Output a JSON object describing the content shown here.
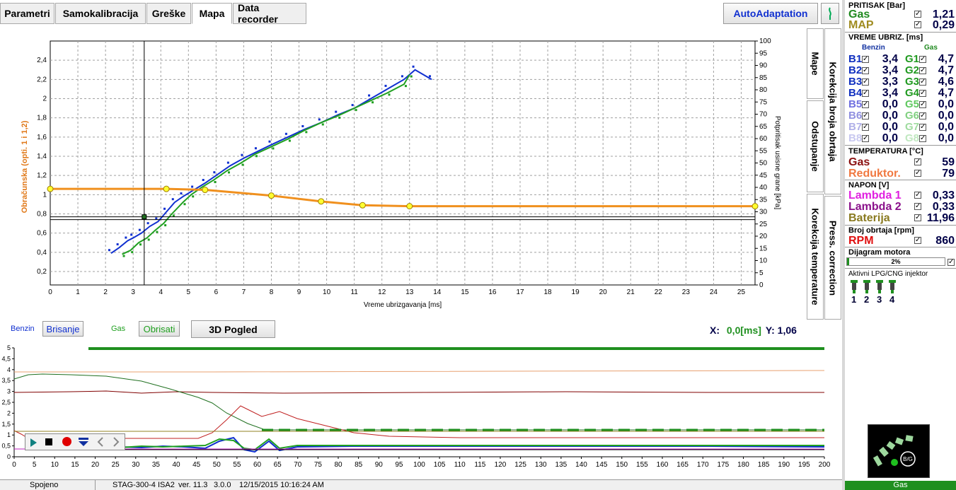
{
  "tabs": [
    "Parametri",
    "Samokalibracija",
    "Greške",
    "Mapa",
    "Data recorder"
  ],
  "auto_adaptation_label": "AutoAdaptation",
  "side_tabs": {
    "mape": "Mape",
    "korekcija_obrtaja": "Korekcija broja obrtaja",
    "odstupanje": "Odstupanje",
    "press_correction": "Press. correction",
    "korekcija_temperature": "Korekcija temperature"
  },
  "map_chart": {
    "ylabel_left": "Obračunska (opti. 1 i 1,2)",
    "ylabel_right": "Potpritisak usisne grane [kPa]",
    "xlabel": "Vreme ubrizgavanja [ms]",
    "y_ticks_left": [
      "0,2",
      "0,4",
      "0,6",
      "0,8",
      "1",
      "1,2",
      "1,4",
      "1,6",
      "1,8",
      "2",
      "2,2",
      "2,4"
    ],
    "y_ticks_right": [
      "0",
      "5",
      "10",
      "15",
      "20",
      "25",
      "30",
      "35",
      "40",
      "45",
      "50",
      "55",
      "60",
      "65",
      "70",
      "75",
      "80",
      "85",
      "90",
      "95",
      "100"
    ],
    "x_ticks": [
      "0",
      "1",
      "2",
      "3",
      "4",
      "5",
      "6",
      "7",
      "8",
      "9",
      "10",
      "11",
      "12",
      "13",
      "14",
      "15",
      "16",
      "17",
      "18",
      "19",
      "20",
      "21",
      "22",
      "23",
      "24",
      "25"
    ]
  },
  "chart_data": {
    "type": "scatter",
    "xlim": [
      0,
      25.5
    ],
    "ylim_left": [
      0.06,
      2.6
    ],
    "ylim_right": [
      0,
      100
    ],
    "series": [
      {
        "name": "Benzin",
        "color": "#1030d0",
        "points": [
          [
            2.2,
            0.39
          ],
          [
            2.5,
            0.45
          ],
          [
            2.8,
            0.52
          ],
          [
            3.0,
            0.55
          ],
          [
            3.3,
            0.6
          ],
          [
            3.6,
            0.67
          ],
          [
            3.9,
            0.72
          ],
          [
            4.2,
            0.82
          ],
          [
            4.5,
            0.92
          ],
          [
            4.8,
            0.98
          ],
          [
            5.2,
            1.05
          ],
          [
            5.6,
            1.12
          ],
          [
            6.0,
            1.2
          ],
          [
            6.5,
            1.3
          ],
          [
            7.0,
            1.38
          ],
          [
            7.5,
            1.45
          ],
          [
            8.0,
            1.52
          ],
          [
            8.6,
            1.6
          ],
          [
            9.2,
            1.68
          ],
          [
            9.8,
            1.75
          ],
          [
            10.4,
            1.83
          ],
          [
            11.0,
            1.9
          ],
          [
            11.6,
            2.0
          ],
          [
            12.2,
            2.1
          ],
          [
            12.8,
            2.2
          ],
          [
            13.2,
            2.3
          ],
          [
            13.8,
            2.2
          ]
        ]
      },
      {
        "name": "Gas",
        "color": "#20a020",
        "points": [
          [
            2.6,
            0.38
          ],
          [
            2.9,
            0.42
          ],
          [
            3.2,
            0.5
          ],
          [
            3.5,
            0.55
          ],
          [
            3.8,
            0.63
          ],
          [
            4.1,
            0.7
          ],
          [
            4.4,
            0.8
          ],
          [
            4.8,
            0.92
          ],
          [
            5.1,
            1.0
          ],
          [
            5.5,
            1.08
          ],
          [
            5.9,
            1.15
          ],
          [
            6.4,
            1.25
          ],
          [
            6.9,
            1.33
          ],
          [
            7.4,
            1.42
          ],
          [
            8.0,
            1.5
          ],
          [
            8.6,
            1.58
          ],
          [
            9.2,
            1.67
          ],
          [
            9.8,
            1.75
          ],
          [
            10.4,
            1.82
          ],
          [
            11.0,
            1.9
          ],
          [
            11.6,
            1.98
          ],
          [
            12.2,
            2.06
          ],
          [
            12.8,
            2.15
          ],
          [
            13.0,
            2.25
          ]
        ]
      },
      {
        "name": "Obračunska",
        "color": "#f0901e",
        "points": [
          [
            0,
            1.06
          ],
          [
            4.2,
            1.06
          ],
          [
            5.6,
            1.05
          ],
          [
            8.0,
            0.99
          ],
          [
            9.8,
            0.93
          ],
          [
            11.3,
            0.89
          ],
          [
            13.0,
            0.88
          ],
          [
            25.5,
            0.88
          ]
        ]
      }
    ],
    "cursor": {
      "x": 3.4,
      "y": 0.74
    }
  },
  "cursor_readout": {
    "x_label": "X:",
    "x_value": "0,0[ms]",
    "y_label": "Y:",
    "y_value": "1,06"
  },
  "controls": {
    "benzin_label": "Benzin",
    "benzin_clear": "Brisanje",
    "gas_label": "Gas",
    "gas_clear": "Obrisati",
    "view3d": "3D Pogled"
  },
  "recorder": {
    "y_ticks": [
      "0",
      "0,5",
      "1",
      "1,5",
      "2",
      "2,5",
      "3",
      "3,5",
      "4",
      "4,5",
      "5"
    ],
    "x_ticks": [
      "0",
      "5",
      "10",
      "15",
      "20",
      "25",
      "30",
      "35",
      "40",
      "45",
      "50",
      "55",
      "60",
      "65",
      "70",
      "75",
      "80",
      "85",
      "90",
      "95",
      "100",
      "105",
      "110",
      "115",
      "120",
      "125",
      "130",
      "135",
      "140",
      "145",
      "150",
      "155",
      "160",
      "165",
      "170",
      "175",
      "180",
      "185",
      "190",
      "195",
      "200"
    ]
  },
  "panel": {
    "pressure_title": "PRITISAK [Bar]",
    "gas_label": "Gas",
    "gas_value": "1,21",
    "map_label": "MAP",
    "map_value": "0,29",
    "inj_title": "VREME UBRIZ. [ms]",
    "benzin_head": "Benzin",
    "gas_head": "Gas",
    "benzin": [
      {
        "label": "B1",
        "value": "3,4"
      },
      {
        "label": "B2",
        "value": "3,4"
      },
      {
        "label": "B3",
        "value": "3,3"
      },
      {
        "label": "B4",
        "value": "3,4"
      },
      {
        "label": "B5",
        "value": "0,0"
      },
      {
        "label": "B6",
        "value": "0,0"
      },
      {
        "label": "B7",
        "value": "0,0"
      },
      {
        "label": "B8",
        "value": "0,0"
      }
    ],
    "gas": [
      {
        "label": "G1",
        "value": "4,7"
      },
      {
        "label": "G2",
        "value": "4,7"
      },
      {
        "label": "G3",
        "value": "4,6"
      },
      {
        "label": "G4",
        "value": "4,7"
      },
      {
        "label": "G5",
        "value": "0,0"
      },
      {
        "label": "G6",
        "value": "0,0"
      },
      {
        "label": "G7",
        "value": "0,0"
      },
      {
        "label": "G8",
        "value": "0,0"
      }
    ],
    "temp_title": "TEMPERATURA [°C]",
    "temp_gas_label": "Gas",
    "temp_gas_value": "59",
    "reduktor_label": "Reduktor.",
    "reduktor_value": "79",
    "napon_title": "NAPON [V]",
    "lambda1_label": "Lambda 1",
    "lambda1_value": "0,33",
    "lambda2_label": "Lambda 2",
    "lambda2_value": "0,33",
    "baterija_label": "Baterija",
    "baterija_value": "11,96",
    "rpm_title": "Broj obrtaja [rpm]",
    "rpm_label": "RPM",
    "rpm_value": "860",
    "diagram_title": "Dijagram motora",
    "diagram_value": "2%",
    "diagram_fraction": 0.02,
    "injectors_title": "Aktivni LPG/CNG injektor",
    "injectors": [
      "1",
      "2",
      "3",
      "4"
    ],
    "logo_text": "B/G",
    "fuel_status": "Gas"
  },
  "status": {
    "connection": "Spojeno",
    "device": "STAG-300-4 ISA2",
    "version": "ver. 11.3",
    "build": "3.0.0",
    "datetime": "12/15/2015 10:16:24 AM"
  }
}
